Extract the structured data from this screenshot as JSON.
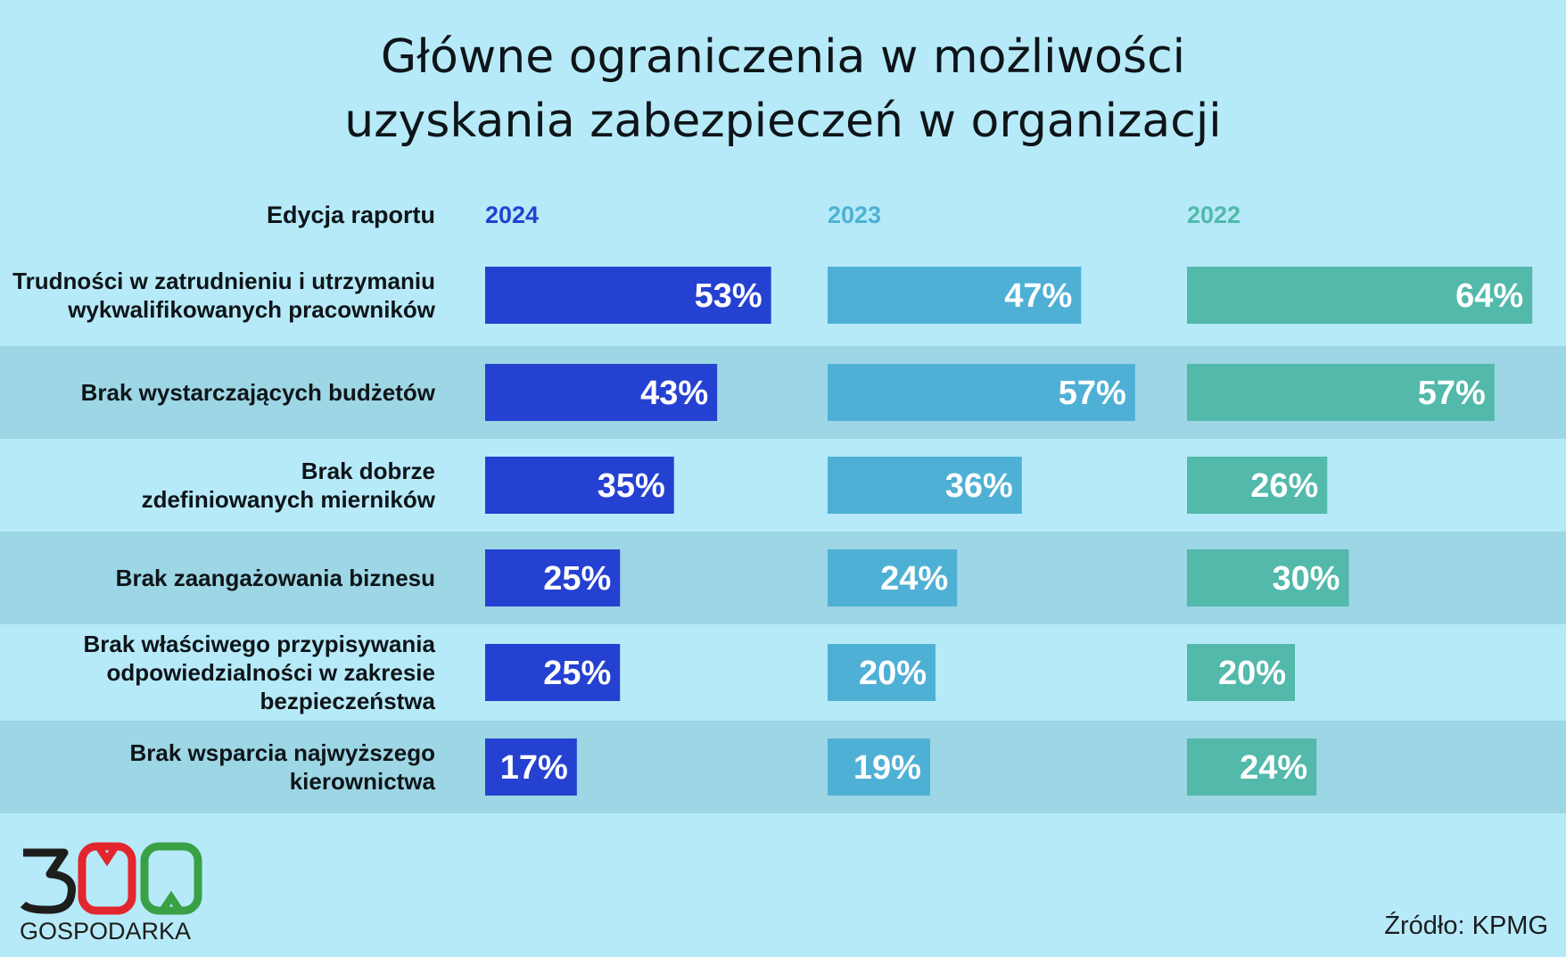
{
  "chart_data": {
    "type": "bar",
    "title_lines": [
      "Główne ograniczenia w możliwości",
      "uzyskania zabezpieczeń w organizacji"
    ],
    "header_label": "Edycja raportu",
    "categories": [
      [
        "Trudności w zatrudnieniu i utrzymaniu",
        "wykwalifikowanych pracowników"
      ],
      [
        "Brak wystarczających budżetów"
      ],
      [
        "Brak dobrze",
        "zdefiniowanych mierników"
      ],
      [
        "Brak zaangażowania biznesu"
      ],
      [
        "Brak właściwego przypisywania",
        "odpowiedzialności w zakresie",
        "bezpieczeństwa"
      ],
      [
        "Brak wsparcia najwyższego",
        "kierownictwa"
      ]
    ],
    "series": [
      {
        "name": "2024",
        "color": "#2541d1",
        "header_color": "#2541d1",
        "values": [
          53,
          43,
          35,
          25,
          25,
          17
        ]
      },
      {
        "name": "2023",
        "color": "#4fb0d6",
        "header_color": "#4fb0d6",
        "values": [
          47,
          57,
          36,
          24,
          20,
          19
        ]
      },
      {
        "name": "2022",
        "color": "#52b9ab",
        "header_color": "#52b9ab",
        "values": [
          64,
          57,
          26,
          30,
          20,
          24
        ]
      }
    ],
    "value_suffix": "%",
    "xlim": [
      0,
      100
    ],
    "colors": {
      "background": "#b6eaf8",
      "stripe": "#9dd6e4",
      "value_label": "#ffffff",
      "text": "#0e1418"
    }
  },
  "logo": {
    "number": "300",
    "text": "GOSPODARKA",
    "colors": {
      "dark": "#1d1d1b",
      "red": "#e3262d",
      "green": "#3aa046"
    }
  },
  "source": "Źródło: KPMG"
}
